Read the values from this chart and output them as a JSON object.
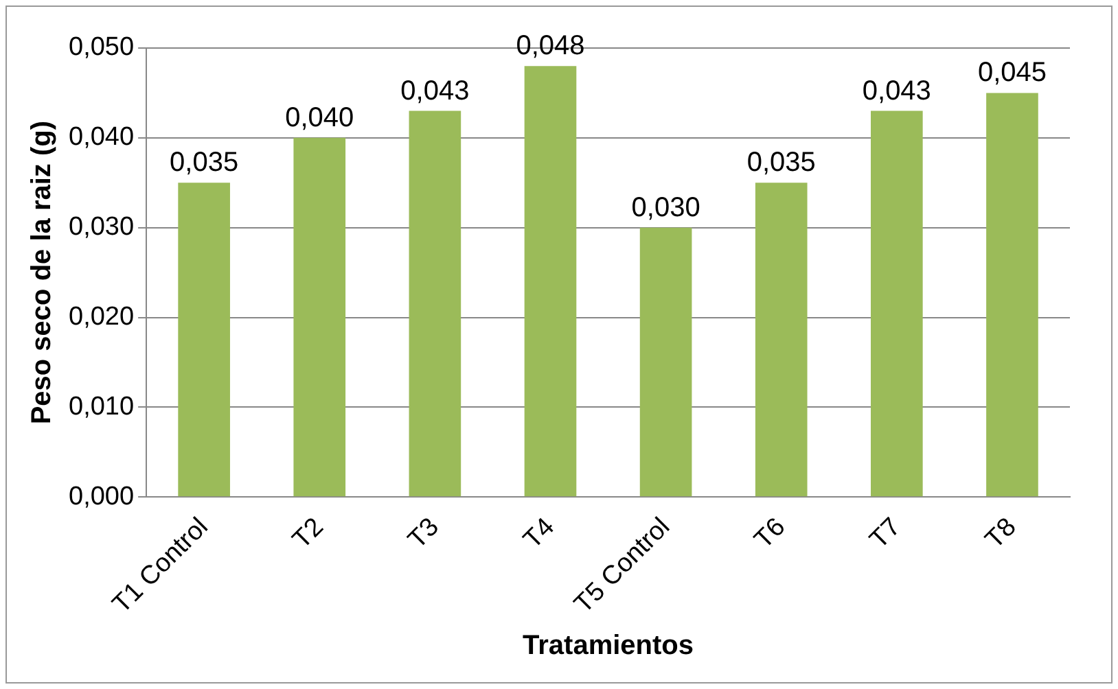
{
  "chart_data": {
    "type": "bar",
    "xlabel": "Tratamientos",
    "ylabel": "Peso seco de la raiz (g)",
    "categories": [
      "T1 Control",
      "T2",
      "T3",
      "T4",
      "T5 Control",
      "T6",
      "T7",
      "T8"
    ],
    "values": [
      0.035,
      0.04,
      0.043,
      0.048,
      0.03,
      0.035,
      0.043,
      0.045
    ],
    "value_labels": [
      "0,035",
      "0,040",
      "0,043",
      "0,048",
      "0,030",
      "0,035",
      "0,043",
      "0,045"
    ],
    "color": "#9bbb59",
    "ylim": [
      0,
      0.05
    ],
    "yticks": [
      {
        "value": 0,
        "label": "0,000"
      },
      {
        "value": 0.01,
        "label": "0,010"
      },
      {
        "value": 0.02,
        "label": "0,020"
      },
      {
        "value": 0.03,
        "label": "0,030"
      },
      {
        "value": 0.04,
        "label": "0,040"
      },
      {
        "value": 0.05,
        "label": "0,050"
      }
    ],
    "grid": "y",
    "legend": false
  }
}
